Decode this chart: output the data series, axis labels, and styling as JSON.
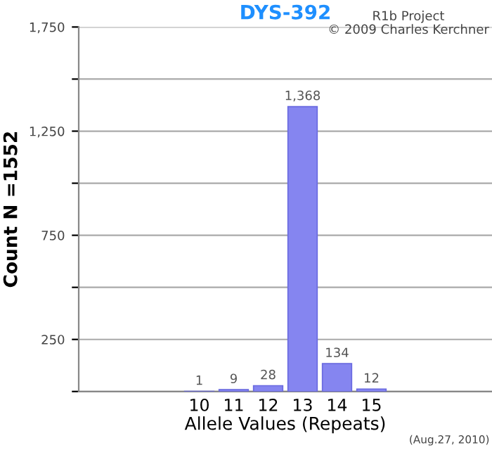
{
  "chart_data": {
    "type": "bar",
    "title": "DYS-392",
    "xlabel": "Allele Values (Repeats)",
    "ylabel": "Count N =1552",
    "categories": [
      null,
      null,
      null,
      "10",
      "11",
      "12",
      "13",
      "14",
      "15",
      null,
      null,
      null
    ],
    "values": [
      null,
      null,
      null,
      1,
      9,
      28,
      1368,
      134,
      12,
      null,
      null,
      null
    ],
    "color": "#8585f0",
    "value_labels": [
      null,
      null,
      null,
      "1",
      "9",
      "28",
      "1,368",
      "134",
      "12",
      null,
      null,
      null
    ],
    "ylim": [
      0,
      1750
    ],
    "yticks": [
      {
        "value": 0,
        "label": null
      },
      250,
      {
        "value": 500,
        "label": null
      },
      750,
      {
        "value": 1000,
        "label": null
      },
      {
        "value": 1250,
        "label": "1,250"
      },
      {
        "value": 1500,
        "label": null
      },
      {
        "value": 1750,
        "label": "1,750"
      }
    ],
    "grid": "y",
    "legend": false,
    "annotations": [
      "R1b Project",
      "© 2009 Charles Kerchner",
      "(Aug.27, 2010)"
    ]
  }
}
